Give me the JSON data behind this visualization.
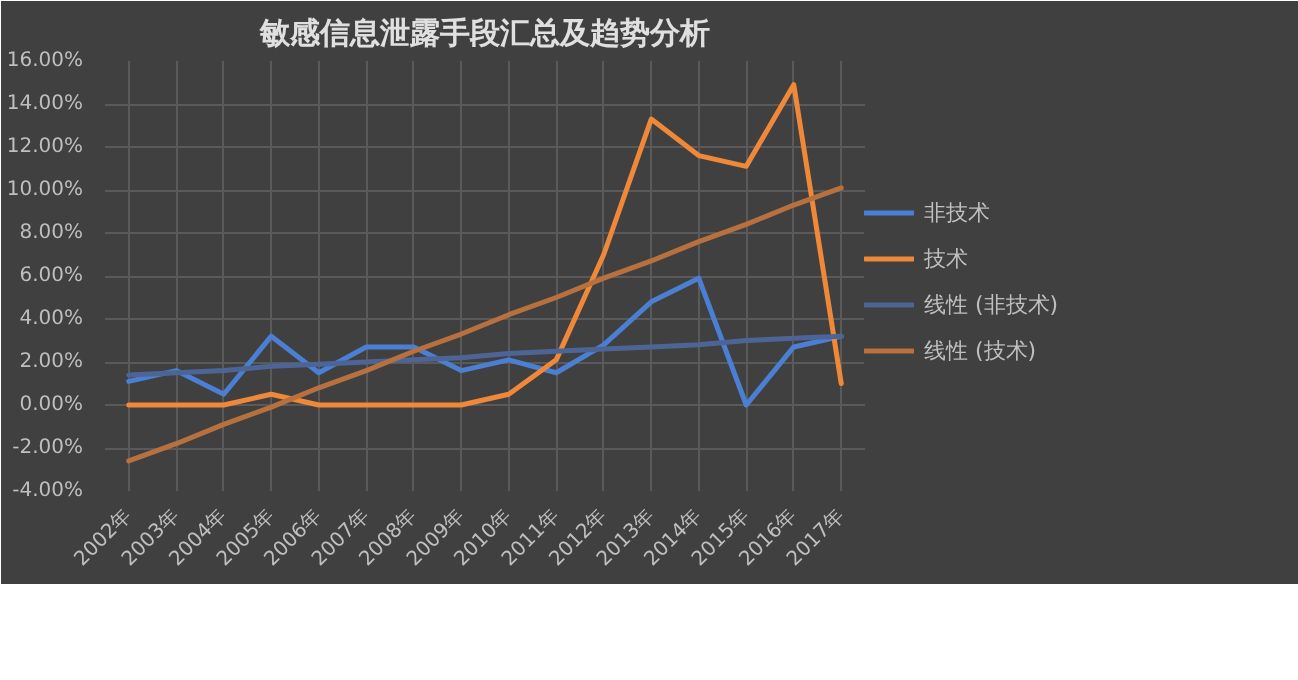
{
  "chart_data": {
    "type": "line",
    "title": "敏感信息泄露手段汇总及趋势分析",
    "categories": [
      "2002年",
      "2003年",
      "2004年",
      "2005年",
      "2006年",
      "2007年",
      "2008年",
      "2009年",
      "2010年",
      "2011年",
      "2012年",
      "2013年",
      "2014年",
      "2015年",
      "2016年",
      "2017年"
    ],
    "series": [
      {
        "name": "非技术",
        "color": "#4a7fd4",
        "values": [
          1.1,
          1.6,
          0.5,
          3.2,
          1.5,
          2.7,
          2.7,
          1.6,
          2.1,
          1.5,
          2.8,
          4.8,
          5.9,
          0.0,
          2.7,
          3.2
        ]
      },
      {
        "name": "技术",
        "color": "#f0883a",
        "values": [
          0,
          0,
          0,
          0.5,
          0,
          0,
          0,
          0,
          0.5,
          2.1,
          7.0,
          13.3,
          11.6,
          11.1,
          14.9,
          1.0
        ]
      },
      {
        "name": "线性 (非技术)",
        "color": "#4d6596",
        "values": [
          1.4,
          1.5,
          1.6,
          1.8,
          1.9,
          2.0,
          2.1,
          2.2,
          2.4,
          2.5,
          2.6,
          2.7,
          2.8,
          3.0,
          3.1,
          3.2
        ]
      },
      {
        "name": "线性 (技术)",
        "color": "#b8703f",
        "values": [
          -2.6,
          -1.8,
          -0.9,
          -0.1,
          0.8,
          1.6,
          2.5,
          3.3,
          4.2,
          5.0,
          5.9,
          6.7,
          7.6,
          8.4,
          9.3,
          10.1
        ]
      }
    ],
    "ylim": [
      -4,
      16
    ],
    "yticks": [
      {
        "value": -4,
        "label": "-4.00%"
      },
      {
        "value": -2,
        "label": "-2.00%"
      },
      {
        "value": 0,
        "label": "0.00%"
      },
      {
        "value": 2,
        "label": "2.00%"
      },
      {
        "value": 4,
        "label": "4.00%"
      },
      {
        "value": 6,
        "label": "6.00%"
      },
      {
        "value": 8,
        "label": "8.00%"
      },
      {
        "value": 10,
        "label": "10.00%"
      },
      {
        "value": 12,
        "label": "12.00%"
      },
      {
        "value": 14,
        "label": "14.00%"
      },
      {
        "value": 16,
        "label": "16.00%"
      }
    ],
    "grid": true,
    "legend": "right",
    "marker": "none",
    "line_style": "solid"
  }
}
